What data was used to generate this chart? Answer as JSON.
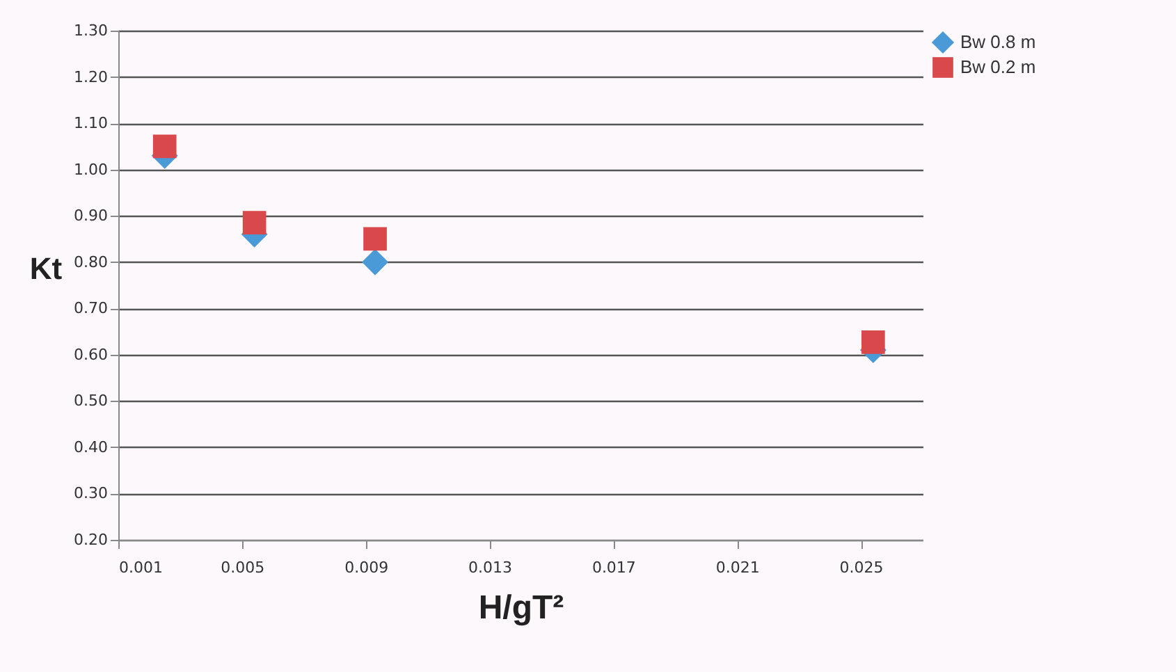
{
  "chart_data": {
    "type": "scatter",
    "xlabel": "H/gT²",
    "ylabel": "Kt",
    "xlim": [
      0.001,
      0.027
    ],
    "xticks": [
      0.001,
      0.005,
      0.009,
      0.013,
      0.017,
      0.021,
      0.025
    ],
    "ylim": [
      0.2,
      1.3
    ],
    "yticks": [
      {
        "value": 0.2,
        "label": "0.20"
      },
      {
        "value": 0.3,
        "label": "0.30"
      },
      {
        "value": 0.4,
        "label": "0.40"
      },
      {
        "value": 0.5,
        "label": "0.50"
      },
      {
        "value": 0.6,
        "label": "0.60"
      },
      {
        "value": 0.7,
        "label": "0.70"
      },
      {
        "value": 0.8,
        "label": "0.80"
      },
      {
        "value": 0.9,
        "label": "0.90"
      },
      {
        "value": 1.0,
        "label": "1.00"
      },
      {
        "value": 1.1,
        "label": "1.10"
      },
      {
        "value": 1.2,
        "label": "1.20"
      },
      {
        "value": 1.3,
        "label": "1.30"
      }
    ],
    "x": [
      0.0025,
      0.0054,
      0.0093,
      0.0254
    ],
    "series": [
      {
        "name": "Bw 0.8 m",
        "color": "#4a9ad8",
        "marker": "diamond",
        "values": [
          1.03,
          0.86,
          0.8,
          0.61
        ]
      },
      {
        "name": "Bw 0.2 m",
        "color": "#d9484a",
        "marker": "square",
        "values": [
          1.05,
          0.885,
          0.85,
          0.627
        ]
      }
    ],
    "grid": "y",
    "legend": "right"
  }
}
